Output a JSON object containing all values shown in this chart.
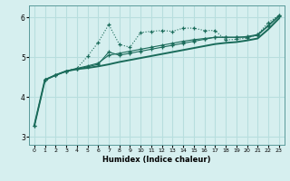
{
  "xlabel": "Humidex (Indice chaleur)",
  "xlim": [
    -0.5,
    23.5
  ],
  "ylim": [
    2.8,
    6.3
  ],
  "yticks": [
    3,
    4,
    5,
    6
  ],
  "xticks": [
    0,
    1,
    2,
    3,
    4,
    5,
    6,
    7,
    8,
    9,
    10,
    11,
    12,
    13,
    14,
    15,
    16,
    17,
    18,
    19,
    20,
    21,
    22,
    23
  ],
  "bg_color": "#d6efef",
  "line_color": "#1a6b5a",
  "grid_color": "#b8dede",
  "line_jagged_x": [
    0,
    1,
    2,
    3,
    4,
    5,
    6,
    7,
    8,
    9,
    10,
    11,
    12,
    13,
    14,
    15,
    16,
    17,
    18,
    19,
    20,
    21,
    22,
    23
  ],
  "line_jagged_y": [
    3.28,
    4.43,
    4.55,
    4.65,
    4.72,
    5.02,
    5.37,
    5.82,
    5.32,
    5.25,
    5.62,
    5.65,
    5.67,
    5.65,
    5.73,
    5.73,
    5.67,
    5.67,
    5.43,
    5.45,
    5.48,
    5.57,
    5.87,
    6.05
  ],
  "line_smooth1_x": [
    0,
    1,
    2,
    3,
    4,
    5,
    6,
    7,
    8,
    9,
    10,
    11,
    12,
    13,
    14,
    15,
    16,
    17,
    18,
    19,
    20,
    21,
    22,
    23
  ],
  "line_smooth1_y": [
    3.28,
    4.43,
    4.55,
    4.65,
    4.72,
    4.78,
    4.85,
    5.05,
    5.1,
    5.15,
    5.2,
    5.25,
    5.3,
    5.35,
    5.4,
    5.44,
    5.47,
    5.5,
    5.5,
    5.5,
    5.52,
    5.57,
    5.8,
    6.05
  ],
  "line_lower_x": [
    0,
    1,
    2,
    3,
    4,
    5,
    6,
    7,
    8,
    9,
    10,
    11,
    12,
    13,
    14,
    15,
    16,
    17,
    18,
    19,
    20,
    21,
    22,
    23
  ],
  "line_lower_y": [
    3.28,
    4.43,
    4.55,
    4.65,
    4.7,
    4.73,
    4.77,
    4.82,
    4.88,
    4.93,
    4.98,
    5.03,
    5.08,
    5.13,
    5.18,
    5.23,
    5.28,
    5.33,
    5.36,
    5.38,
    5.42,
    5.47,
    5.7,
    5.97
  ],
  "line_mid_x": [
    1,
    2,
    3,
    4,
    5,
    6,
    7,
    8,
    9,
    10,
    11,
    12,
    13,
    14,
    15,
    16,
    17,
    18,
    19,
    20,
    21,
    22,
    23
  ],
  "line_mid_y": [
    4.43,
    4.55,
    4.65,
    4.7,
    4.76,
    4.82,
    5.13,
    5.05,
    5.1,
    5.15,
    5.2,
    5.25,
    5.3,
    5.35,
    5.4,
    5.45,
    5.5,
    5.5,
    5.5,
    5.5,
    5.55,
    5.78,
    6.02
  ]
}
